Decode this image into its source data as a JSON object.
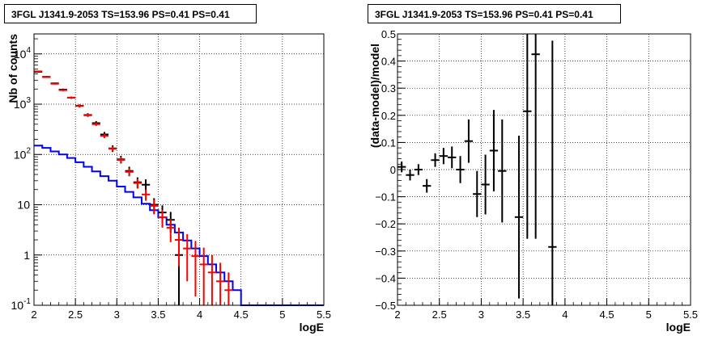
{
  "chart_data": [
    {
      "type": "step-histogram with error bars",
      "title": "3FGL J1341.9-2053 TS=153.96 PS=0.41 PS=0.41",
      "xlabel": "logE",
      "ylabel": "Nb of counts",
      "xlim": [
        2,
        5.5
      ],
      "ylim": [
        0.1,
        25000
      ],
      "y_scale": "log",
      "grid": true,
      "x_ticks": [
        "2",
        "2.5",
        "3",
        "3.5",
        "4",
        "4.5",
        "5",
        "5.5"
      ],
      "y_ticks": [
        {
          "value": 0.1,
          "label": "10",
          "exp": "-1"
        },
        {
          "value": 1,
          "label": "1",
          "exp": ""
        },
        {
          "value": 10,
          "label": "10",
          "exp": ""
        },
        {
          "value": 100,
          "label": "10",
          "exp": "2"
        },
        {
          "value": 1000,
          "label": "10",
          "exp": "3"
        },
        {
          "value": 10000,
          "label": "10",
          "exp": "4"
        }
      ],
      "series": [
        {
          "color": "#0000ff",
          "kind": "step",
          "x_edges": [
            2.0,
            2.1,
            2.2,
            2.3,
            2.4,
            2.5,
            2.6,
            2.7,
            2.8,
            2.9,
            3.0,
            3.1,
            3.2,
            3.3,
            3.4,
            3.5,
            3.6,
            3.7,
            3.8,
            3.9,
            4.0,
            4.1,
            4.2,
            4.3,
            4.4,
            4.5,
            4.6,
            4.7,
            4.8,
            4.9,
            5.0,
            5.1,
            5.2,
            5.3,
            5.4,
            5.5
          ],
          "values": [
            150,
            135,
            115,
            100,
            85,
            70,
            57,
            46,
            37,
            30,
            23,
            18,
            14,
            10.5,
            7.8,
            5.6,
            4.0,
            2.8,
            1.95,
            1.35,
            0.95,
            0.65,
            0.45,
            0.3,
            0.2,
            0.1,
            0.1,
            0.1,
            0.1,
            0.1,
            0.1,
            0.1,
            0.1,
            0.1,
            0.1
          ]
        },
        {
          "color": "#000000",
          "kind": "errorbar",
          "points": [
            {
              "x": 2.05,
              "y": 4400,
              "lo": 4270,
              "hi": 4530
            },
            {
              "x": 2.15,
              "y": 3500,
              "lo": 3380,
              "hi": 3620
            },
            {
              "x": 2.25,
              "y": 2600,
              "lo": 2500,
              "hi": 2700
            },
            {
              "x": 2.35,
              "y": 1950,
              "lo": 1860,
              "hi": 2040
            },
            {
              "x": 2.45,
              "y": 1350,
              "lo": 1280,
              "hi": 1420
            },
            {
              "x": 2.55,
              "y": 930,
              "lo": 870,
              "hi": 990
            },
            {
              "x": 2.65,
              "y": 610,
              "lo": 560,
              "hi": 660
            },
            {
              "x": 2.75,
              "y": 420,
              "lo": 380,
              "hi": 460
            },
            {
              "x": 2.85,
              "y": 250,
              "lo": 220,
              "hi": 280
            },
            {
              "x": 2.95,
              "y": 132,
              "lo": 112,
              "hi": 152
            },
            {
              "x": 3.05,
              "y": 80,
              "lo": 66,
              "hi": 94
            },
            {
              "x": 3.15,
              "y": 47,
              "lo": 37,
              "hi": 57
            },
            {
              "x": 3.25,
              "y": 28,
              "lo": 21,
              "hi": 35
            },
            {
              "x": 3.35,
              "y": 25,
              "lo": 18,
              "hi": 32
            },
            {
              "x": 3.45,
              "y": 10,
              "lo": 6.5,
              "hi": 13.5
            },
            {
              "x": 3.55,
              "y": 7,
              "lo": 4.3,
              "hi": 9.7
            },
            {
              "x": 3.65,
              "y": 5,
              "lo": 2.8,
              "hi": 7.2
            },
            {
              "x": 3.75,
              "y": 1,
              "lo": 0.1,
              "hi": 2
            }
          ]
        },
        {
          "color": "#ff0000",
          "kind": "errorbar",
          "points": [
            {
              "x": 2.05,
              "y": 4500,
              "lo": 4380,
              "hi": 4620
            },
            {
              "x": 2.15,
              "y": 3450,
              "lo": 3340,
              "hi": 3560
            },
            {
              "x": 2.25,
              "y": 2550,
              "lo": 2450,
              "hi": 2650
            },
            {
              "x": 2.35,
              "y": 1900,
              "lo": 1820,
              "hi": 1980
            },
            {
              "x": 2.45,
              "y": 1350,
              "lo": 1280,
              "hi": 1420
            },
            {
              "x": 2.55,
              "y": 920,
              "lo": 860,
              "hi": 980
            },
            {
              "x": 2.65,
              "y": 600,
              "lo": 560,
              "hi": 640
            },
            {
              "x": 2.75,
              "y": 400,
              "lo": 370,
              "hi": 430
            },
            {
              "x": 2.85,
              "y": 235,
              "lo": 212,
              "hi": 258
            },
            {
              "x": 2.95,
              "y": 130,
              "lo": 115,
              "hi": 145
            },
            {
              "x": 3.05,
              "y": 78,
              "lo": 67,
              "hi": 89
            },
            {
              "x": 3.15,
              "y": 45,
              "lo": 37,
              "hi": 53
            },
            {
              "x": 3.25,
              "y": 27,
              "lo": 21,
              "hi": 33
            },
            {
              "x": 3.35,
              "y": 16,
              "lo": 12,
              "hi": 20
            },
            {
              "x": 3.45,
              "y": 9.5,
              "lo": 6.5,
              "hi": 12.5
            },
            {
              "x": 3.55,
              "y": 5.6,
              "lo": 3.5,
              "hi": 7.8
            },
            {
              "x": 3.65,
              "y": 3.5,
              "lo": 1.8,
              "hi": 5.2
            },
            {
              "x": 3.75,
              "y": 2.0,
              "lo": 0.6,
              "hi": 3.5
            },
            {
              "x": 3.85,
              "y": 1.35,
              "lo": 0.3,
              "hi": 2.6
            },
            {
              "x": 3.95,
              "y": 0.95,
              "lo": 0.15,
              "hi": 1.9
            },
            {
              "x": 4.05,
              "y": 0.65,
              "lo": 0.1,
              "hi": 1.4
            },
            {
              "x": 4.15,
              "y": 0.45,
              "lo": 0.1,
              "hi": 1.0
            },
            {
              "x": 4.25,
              "y": 0.3,
              "lo": 0.1,
              "hi": 0.7
            },
            {
              "x": 4.35,
              "y": 0.2,
              "lo": 0.1,
              "hi": 0.45
            }
          ]
        }
      ]
    },
    {
      "type": "errorbar",
      "title": "3FGL J1341.9-2053 TS=153.96 PS=0.41 PS=0.41",
      "xlabel": "logE",
      "ylabel": "(data-model)/model",
      "xlim": [
        2,
        5.5
      ],
      "ylim": [
        -0.5,
        0.5
      ],
      "grid": true,
      "x_ticks": [
        "2",
        "2.5",
        "3",
        "3.5",
        "4",
        "4.5",
        "5",
        "5.5"
      ],
      "y_ticks": [
        "−0.5",
        "−0.4",
        "−0.3",
        "−0.2",
        "−0.1",
        "0",
        "0.1",
        "0.2",
        "0.3",
        "0.4",
        "0.5"
      ],
      "series": [
        {
          "color": "#000000",
          "points": [
            {
              "x": 2.05,
              "y": 0.01,
              "err": 0.02
            },
            {
              "x": 2.15,
              "y": -0.02,
              "err": 0.02
            },
            {
              "x": 2.25,
              "y": 0.0,
              "err": 0.02
            },
            {
              "x": 2.35,
              "y": -0.06,
              "err": 0.025
            },
            {
              "x": 2.45,
              "y": 0.035,
              "err": 0.025
            },
            {
              "x": 2.55,
              "y": 0.05,
              "err": 0.03
            },
            {
              "x": 2.65,
              "y": 0.045,
              "err": 0.04
            },
            {
              "x": 2.75,
              "y": 0.0,
              "err": 0.05
            },
            {
              "x": 2.85,
              "y": 0.105,
              "err": 0.08
            },
            {
              "x": 2.95,
              "y": -0.09,
              "err": 0.085
            },
            {
              "x": 3.05,
              "y": -0.055,
              "err": 0.11
            },
            {
              "x": 3.15,
              "y": 0.07,
              "err": 0.15
            },
            {
              "x": 3.25,
              "y": -0.005,
              "err": 0.19
            },
            {
              "x": 3.45,
              "y": -0.175,
              "err": 0.3
            },
            {
              "x": 3.55,
              "y": 0.215,
              "err": 0.47
            },
            {
              "x": 3.65,
              "y": 0.425,
              "err": 0.68
            },
            {
              "x": 3.85,
              "y": -0.285,
              "err": 0.76
            }
          ]
        }
      ]
    }
  ]
}
